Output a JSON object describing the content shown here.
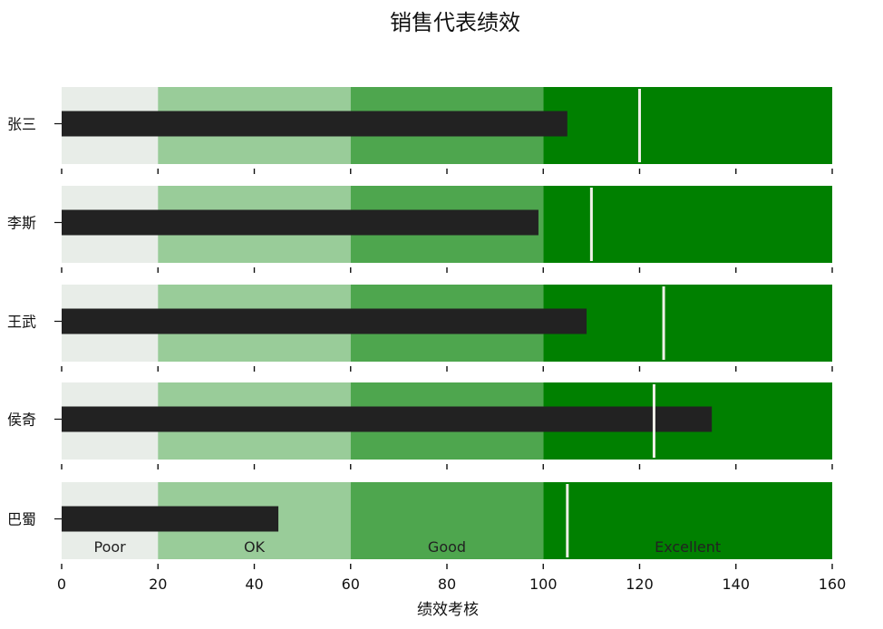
{
  "chart_data": {
    "type": "bar",
    "title": "销售代表绩效",
    "xlabel": "绩效考核",
    "ylabel": "",
    "xlim": [
      0,
      160
    ],
    "x_ticks": [
      "0",
      "20",
      "40",
      "60",
      "80",
      "100",
      "120",
      "140",
      "160"
    ],
    "categories": [
      "张三",
      "李斯",
      "王武",
      "侯奇",
      "巴蜀"
    ],
    "values": [
      105,
      99,
      109,
      135,
      45
    ],
    "targets": [
      120,
      110,
      125,
      123,
      105
    ],
    "ranges": [
      {
        "name": "Poor",
        "from": 0,
        "to": 20,
        "color": "#e8ede8"
      },
      {
        "name": "OK",
        "from": 20,
        "to": 60,
        "color": "#99cc99"
      },
      {
        "name": "Good",
        "from": 60,
        "to": 100,
        "color": "#4ea64e"
      },
      {
        "name": "Excellent",
        "from": 100,
        "to": 160,
        "color": "#008000"
      }
    ],
    "bar_color": "#222222",
    "target_color": "#f0f0e8",
    "grid": false
  }
}
